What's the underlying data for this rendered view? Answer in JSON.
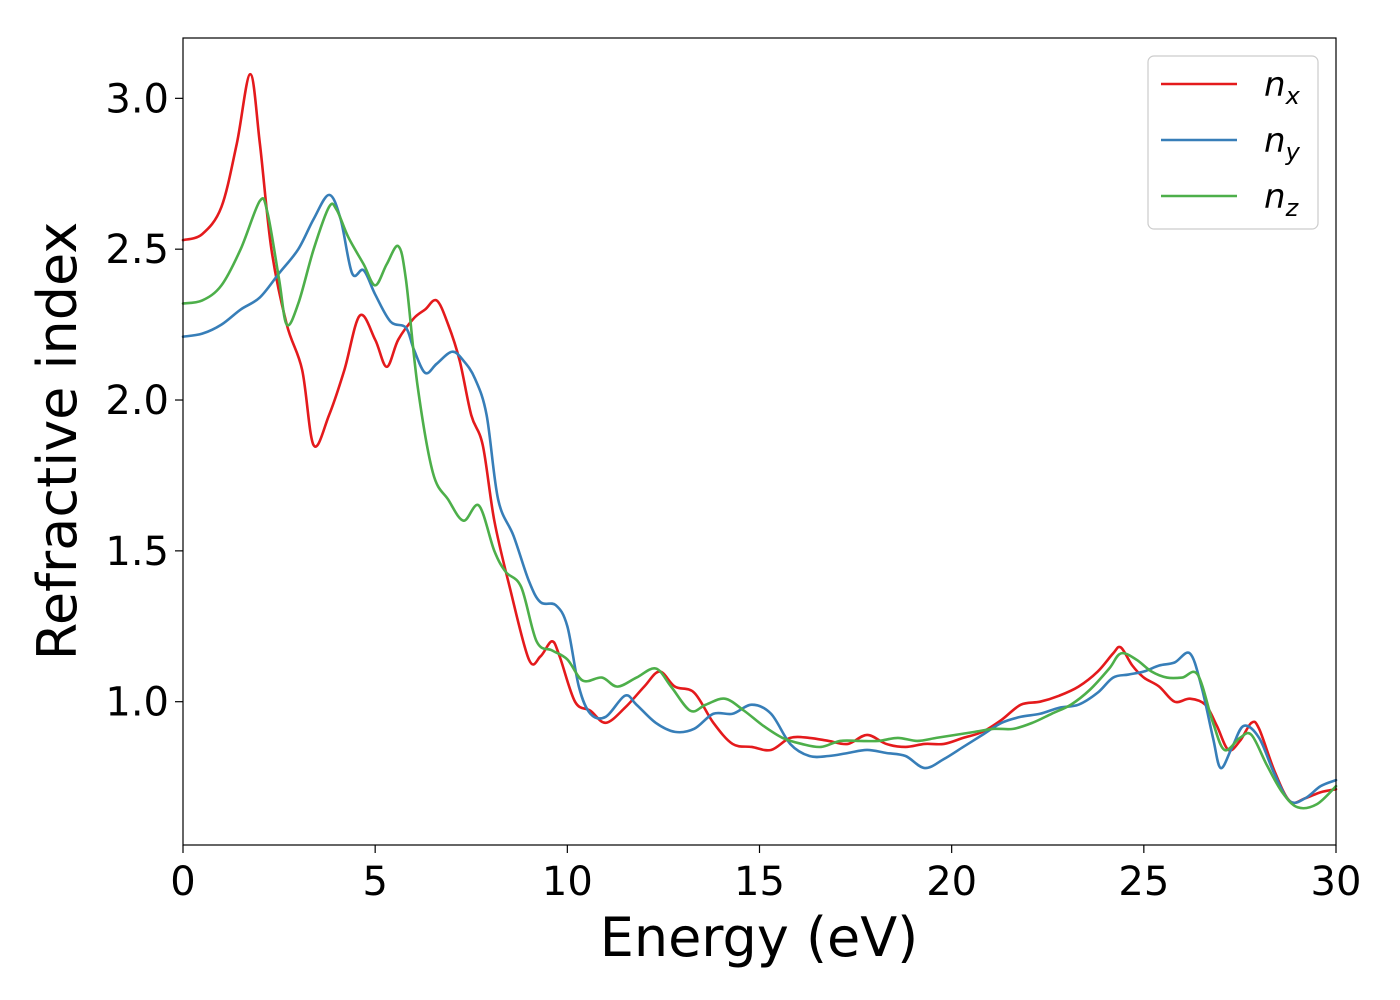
{
  "chart_data": {
    "type": "line",
    "xlabel": "Energy (eV)",
    "ylabel": "Refractive index",
    "xlim": [
      0,
      30
    ],
    "ylim": [
      0.525,
      3.2
    ],
    "xticks": [
      0,
      5,
      10,
      15,
      20,
      25,
      30
    ],
    "xtick_labels": [
      "0",
      "5",
      "10",
      "15",
      "20",
      "25",
      "30"
    ],
    "yticks": [
      1.0,
      1.5,
      2.0,
      2.5,
      3.0
    ],
    "ytick_labels": [
      "1.0",
      "1.5",
      "2.0",
      "2.5",
      "3.0"
    ],
    "grid": false,
    "legend_position": "top-right",
    "series": [
      {
        "name": "n",
        "subscript": "x",
        "color": "#e41a1c",
        "points": [
          [
            0,
            2.53
          ],
          [
            0.5,
            2.55
          ],
          [
            1.0,
            2.64
          ],
          [
            1.4,
            2.85
          ],
          [
            1.75,
            3.08
          ],
          [
            2.0,
            2.85
          ],
          [
            2.3,
            2.5
          ],
          [
            2.7,
            2.25
          ],
          [
            3.1,
            2.1
          ],
          [
            3.4,
            1.85
          ],
          [
            3.8,
            1.95
          ],
          [
            4.2,
            2.1
          ],
          [
            4.6,
            2.28
          ],
          [
            5.0,
            2.2
          ],
          [
            5.3,
            2.11
          ],
          [
            5.6,
            2.2
          ],
          [
            6.0,
            2.27
          ],
          [
            6.3,
            2.3
          ],
          [
            6.6,
            2.33
          ],
          [
            6.9,
            2.25
          ],
          [
            7.2,
            2.13
          ],
          [
            7.5,
            1.95
          ],
          [
            7.8,
            1.85
          ],
          [
            8.1,
            1.6
          ],
          [
            8.5,
            1.38
          ],
          [
            9.0,
            1.14
          ],
          [
            9.3,
            1.15
          ],
          [
            9.6,
            1.2
          ],
          [
            9.8,
            1.15
          ],
          [
            10.2,
            1.0
          ],
          [
            10.6,
            0.97
          ],
          [
            11.0,
            0.93
          ],
          [
            11.5,
            0.98
          ],
          [
            12.0,
            1.05
          ],
          [
            12.4,
            1.1
          ],
          [
            12.8,
            1.05
          ],
          [
            13.3,
            1.03
          ],
          [
            13.8,
            0.93
          ],
          [
            14.3,
            0.86
          ],
          [
            14.8,
            0.85
          ],
          [
            15.3,
            0.84
          ],
          [
            15.8,
            0.88
          ],
          [
            16.3,
            0.88
          ],
          [
            16.8,
            0.87
          ],
          [
            17.3,
            0.86
          ],
          [
            17.8,
            0.89
          ],
          [
            18.3,
            0.86
          ],
          [
            18.8,
            0.85
          ],
          [
            19.3,
            0.86
          ],
          [
            19.8,
            0.86
          ],
          [
            20.3,
            0.88
          ],
          [
            20.8,
            0.9
          ],
          [
            21.3,
            0.94
          ],
          [
            21.8,
            0.99
          ],
          [
            22.3,
            1.0
          ],
          [
            22.8,
            1.02
          ],
          [
            23.3,
            1.05
          ],
          [
            23.8,
            1.1
          ],
          [
            24.2,
            1.16
          ],
          [
            24.4,
            1.18
          ],
          [
            24.7,
            1.12
          ],
          [
            25.0,
            1.08
          ],
          [
            25.4,
            1.05
          ],
          [
            25.8,
            1.0
          ],
          [
            26.2,
            1.01
          ],
          [
            26.6,
            0.99
          ],
          [
            26.9,
            0.92
          ],
          [
            27.2,
            0.84
          ],
          [
            27.5,
            0.87
          ],
          [
            27.8,
            0.93
          ],
          [
            28.0,
            0.91
          ],
          [
            28.4,
            0.77
          ],
          [
            28.8,
            0.67
          ],
          [
            29.2,
            0.68
          ],
          [
            29.6,
            0.7
          ],
          [
            30.0,
            0.71
          ]
        ]
      },
      {
        "name": "n",
        "subscript": "y",
        "color": "#377eb8",
        "points": [
          [
            0,
            2.21
          ],
          [
            0.5,
            2.22
          ],
          [
            1.0,
            2.25
          ],
          [
            1.5,
            2.3
          ],
          [
            2.0,
            2.34
          ],
          [
            2.5,
            2.42
          ],
          [
            3.0,
            2.5
          ],
          [
            3.4,
            2.6
          ],
          [
            3.8,
            2.68
          ],
          [
            4.1,
            2.6
          ],
          [
            4.4,
            2.42
          ],
          [
            4.7,
            2.43
          ],
          [
            5.0,
            2.35
          ],
          [
            5.4,
            2.26
          ],
          [
            5.8,
            2.24
          ],
          [
            6.0,
            2.17
          ],
          [
            6.3,
            2.09
          ],
          [
            6.6,
            2.12
          ],
          [
            7.0,
            2.16
          ],
          [
            7.3,
            2.13
          ],
          [
            7.6,
            2.07
          ],
          [
            7.9,
            1.95
          ],
          [
            8.2,
            1.67
          ],
          [
            8.6,
            1.55
          ],
          [
            9.0,
            1.4
          ],
          [
            9.3,
            1.33
          ],
          [
            9.7,
            1.32
          ],
          [
            10.0,
            1.25
          ],
          [
            10.3,
            1.05
          ],
          [
            10.6,
            0.96
          ],
          [
            11.0,
            0.95
          ],
          [
            11.5,
            1.02
          ],
          [
            11.8,
            0.99
          ],
          [
            12.3,
            0.93
          ],
          [
            12.8,
            0.9
          ],
          [
            13.3,
            0.91
          ],
          [
            13.8,
            0.96
          ],
          [
            14.3,
            0.96
          ],
          [
            14.8,
            0.99
          ],
          [
            15.3,
            0.96
          ],
          [
            15.8,
            0.86
          ],
          [
            16.3,
            0.82
          ],
          [
            16.8,
            0.82
          ],
          [
            17.3,
            0.83
          ],
          [
            17.8,
            0.84
          ],
          [
            18.3,
            0.83
          ],
          [
            18.8,
            0.82
          ],
          [
            19.3,
            0.78
          ],
          [
            19.8,
            0.81
          ],
          [
            20.3,
            0.85
          ],
          [
            20.8,
            0.89
          ],
          [
            21.3,
            0.93
          ],
          [
            21.8,
            0.95
          ],
          [
            22.3,
            0.96
          ],
          [
            22.8,
            0.98
          ],
          [
            23.3,
            0.99
          ],
          [
            23.8,
            1.03
          ],
          [
            24.2,
            1.08
          ],
          [
            24.6,
            1.09
          ],
          [
            25.0,
            1.1
          ],
          [
            25.4,
            1.12
          ],
          [
            25.8,
            1.13
          ],
          [
            26.2,
            1.16
          ],
          [
            26.5,
            1.05
          ],
          [
            26.8,
            0.88
          ],
          [
            27.0,
            0.78
          ],
          [
            27.3,
            0.85
          ],
          [
            27.6,
            0.92
          ],
          [
            28.0,
            0.88
          ],
          [
            28.4,
            0.76
          ],
          [
            28.8,
            0.67
          ],
          [
            29.2,
            0.68
          ],
          [
            29.6,
            0.72
          ],
          [
            30.0,
            0.74
          ]
        ]
      },
      {
        "name": "n",
        "subscript": "z",
        "color": "#4daf4a",
        "points": [
          [
            0,
            2.32
          ],
          [
            0.5,
            2.33
          ],
          [
            1.0,
            2.38
          ],
          [
            1.5,
            2.5
          ],
          [
            2.0,
            2.66
          ],
          [
            2.2,
            2.62
          ],
          [
            2.5,
            2.4
          ],
          [
            2.7,
            2.25
          ],
          [
            3.0,
            2.32
          ],
          [
            3.4,
            2.5
          ],
          [
            3.8,
            2.64
          ],
          [
            4.0,
            2.63
          ],
          [
            4.3,
            2.54
          ],
          [
            4.7,
            2.45
          ],
          [
            5.0,
            2.38
          ],
          [
            5.3,
            2.45
          ],
          [
            5.6,
            2.51
          ],
          [
            5.8,
            2.4
          ],
          [
            6.1,
            2.05
          ],
          [
            6.5,
            1.76
          ],
          [
            6.9,
            1.67
          ],
          [
            7.3,
            1.6
          ],
          [
            7.7,
            1.65
          ],
          [
            8.1,
            1.5
          ],
          [
            8.4,
            1.43
          ],
          [
            8.8,
            1.38
          ],
          [
            9.2,
            1.2
          ],
          [
            9.6,
            1.17
          ],
          [
            10.0,
            1.14
          ],
          [
            10.4,
            1.07
          ],
          [
            10.9,
            1.08
          ],
          [
            11.3,
            1.05
          ],
          [
            11.8,
            1.08
          ],
          [
            12.3,
            1.11
          ],
          [
            12.7,
            1.05
          ],
          [
            13.2,
            0.97
          ],
          [
            13.6,
            0.99
          ],
          [
            14.1,
            1.01
          ],
          [
            14.6,
            0.97
          ],
          [
            15.1,
            0.92
          ],
          [
            15.6,
            0.88
          ],
          [
            16.1,
            0.86
          ],
          [
            16.6,
            0.85
          ],
          [
            17.1,
            0.87
          ],
          [
            17.6,
            0.87
          ],
          [
            18.1,
            0.87
          ],
          [
            18.6,
            0.88
          ],
          [
            19.1,
            0.87
          ],
          [
            19.6,
            0.88
          ],
          [
            20.1,
            0.89
          ],
          [
            20.6,
            0.9
          ],
          [
            21.1,
            0.91
          ],
          [
            21.6,
            0.91
          ],
          [
            22.1,
            0.93
          ],
          [
            22.6,
            0.96
          ],
          [
            23.1,
            0.99
          ],
          [
            23.6,
            1.04
          ],
          [
            24.1,
            1.11
          ],
          [
            24.4,
            1.16
          ],
          [
            24.8,
            1.14
          ],
          [
            25.2,
            1.1
          ],
          [
            25.6,
            1.08
          ],
          [
            26.0,
            1.08
          ],
          [
            26.4,
            1.09
          ],
          [
            26.8,
            0.93
          ],
          [
            27.1,
            0.84
          ],
          [
            27.5,
            0.88
          ],
          [
            27.8,
            0.89
          ],
          [
            28.2,
            0.79
          ],
          [
            28.6,
            0.7
          ],
          [
            29.0,
            0.65
          ],
          [
            29.5,
            0.66
          ],
          [
            30.0,
            0.72
          ]
        ]
      }
    ]
  }
}
